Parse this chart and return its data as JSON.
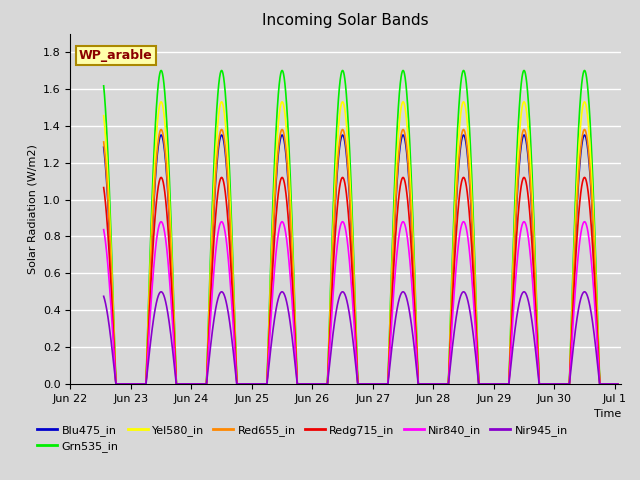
{
  "title": "Incoming Solar Bands",
  "xlabel": "Time",
  "ylabel": "Solar Radiation (W/m2)",
  "wp_label": "WP_arable",
  "fig_facecolor": "#d8d8d8",
  "plot_bg_color": "#d8d8d8",
  "ylim": [
    0,
    1.9
  ],
  "yticks": [
    0.0,
    0.2,
    0.4,
    0.6,
    0.8,
    1.0,
    1.2,
    1.4,
    1.6,
    1.8
  ],
  "n_points": 5000,
  "t_start": 0.55,
  "t_end": 9.05,
  "bands": [
    {
      "name": "Blu475_in",
      "color": "#0000cc",
      "peak": 1.35,
      "lw": 1.2
    },
    {
      "name": "Grn535_in",
      "color": "#00ee00",
      "peak": 1.7,
      "lw": 1.2
    },
    {
      "name": "Yel580_in",
      "color": "#ffff00",
      "peak": 1.53,
      "lw": 1.2
    },
    {
      "name": "Red655_in",
      "color": "#ff8800",
      "peak": 1.38,
      "lw": 1.2
    },
    {
      "name": "Redg715_in",
      "color": "#ee0000",
      "peak": 1.12,
      "lw": 1.2
    },
    {
      "name": "Nir840_in",
      "color": "#ff00ff",
      "peak": 0.88,
      "lw": 1.2
    },
    {
      "name": "Nir945_in",
      "color": "#8800cc",
      "peak": 0.5,
      "lw": 1.2
    }
  ],
  "xtick_labels": [
    "Jun 22",
    "Jun 23",
    "Jun 24",
    "Jun 25",
    "Jun 26",
    "Jun 27",
    "Jun 28",
    "Jun 29",
    "Jun 30",
    "Jul 1"
  ],
  "xtick_positions": [
    0,
    1,
    2,
    3,
    4,
    5,
    6,
    7,
    8,
    9
  ],
  "xlim_start": 0.0,
  "xlim_end": 9.1,
  "legend_ncol": 6,
  "legend_fontsize": 8,
  "title_fontsize": 11
}
